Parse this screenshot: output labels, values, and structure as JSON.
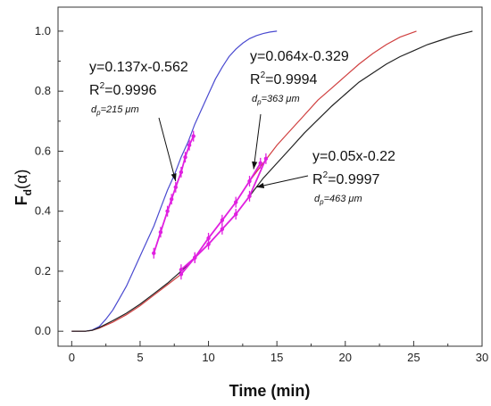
{
  "chart_data": {
    "type": "line",
    "xlabel": "Time (min)",
    "ylabel": {
      "main": "F",
      "sub": "d",
      "paren": "(α)"
    },
    "xlim": [
      -1,
      30
    ],
    "ylim": [
      -0.05,
      1.08
    ],
    "x_ticks": [
      0,
      5,
      10,
      15,
      20,
      25,
      30
    ],
    "y_ticks": [
      0.0,
      0.2,
      0.4,
      0.6,
      0.8,
      1.0
    ],
    "x_tick_labels": [
      "0",
      "5",
      "10",
      "15",
      "20",
      "25",
      "30"
    ],
    "y_tick_labels": [
      "0.0",
      "0.2",
      "0.4",
      "0.6",
      "0.8",
      "1.0"
    ],
    "grid": false,
    "series": [
      {
        "color": "#4a4ad0",
        "x": [
          0,
          1,
          1.5,
          2,
          2.5,
          3,
          3.5,
          4,
          4.5,
          5,
          5.5,
          6,
          6.5,
          7,
          7.5,
          8,
          8.5,
          9,
          9.5,
          10,
          10.5,
          11,
          11.5,
          12,
          12.5,
          13,
          13.5,
          14,
          14.5,
          15
        ],
        "y": [
          0,
          0,
          0.004,
          0.015,
          0.04,
          0.07,
          0.11,
          0.15,
          0.2,
          0.25,
          0.3,
          0.35,
          0.41,
          0.47,
          0.52,
          0.58,
          0.63,
          0.69,
          0.74,
          0.79,
          0.84,
          0.88,
          0.915,
          0.94,
          0.96,
          0.975,
          0.985,
          0.992,
          0.997,
          1.0
        ]
      },
      {
        "color": "#d04040",
        "x": [
          0,
          1,
          1.5,
          2,
          3,
          4,
          5,
          6,
          7,
          8,
          9,
          10,
          11,
          12,
          13,
          14,
          15,
          16,
          17,
          18,
          19,
          20,
          21,
          22,
          23,
          24,
          25.2
        ],
        "y": [
          0,
          0,
          0.003,
          0.01,
          0.03,
          0.055,
          0.085,
          0.12,
          0.155,
          0.19,
          0.245,
          0.31,
          0.37,
          0.43,
          0.5,
          0.56,
          0.62,
          0.67,
          0.72,
          0.77,
          0.81,
          0.85,
          0.89,
          0.925,
          0.955,
          0.98,
          1.0
        ]
      },
      {
        "color": "#222222",
        "x": [
          0,
          1,
          1.5,
          2,
          3,
          4,
          5,
          6,
          7,
          8,
          9,
          10,
          11,
          12,
          13,
          14,
          15,
          16,
          17,
          18,
          19,
          20,
          21,
          22,
          23,
          24,
          25,
          26,
          27,
          28,
          29.3
        ],
        "y": [
          0,
          0,
          0.003,
          0.012,
          0.035,
          0.06,
          0.09,
          0.125,
          0.16,
          0.2,
          0.245,
          0.29,
          0.34,
          0.39,
          0.45,
          0.51,
          0.56,
          0.61,
          0.66,
          0.705,
          0.75,
          0.79,
          0.83,
          0.86,
          0.89,
          0.915,
          0.935,
          0.955,
          0.97,
          0.985,
          1.0
        ]
      }
    ],
    "markers": [
      {
        "x": [
          6.0,
          6.5,
          7.0,
          7.3,
          7.6,
          8.0,
          8.3,
          8.6,
          8.9
        ],
        "y": [
          0.26,
          0.33,
          0.4,
          0.44,
          0.48,
          0.53,
          0.58,
          0.62,
          0.65
        ]
      },
      {
        "x": [
          8.0,
          9.0,
          10.0,
          11.0,
          12.0,
          13.0,
          13.8
        ],
        "y": [
          0.19,
          0.245,
          0.31,
          0.37,
          0.43,
          0.5,
          0.56
        ]
      },
      {
        "x": [
          8.0,
          9.0,
          10.0,
          11.0,
          12.0,
          13.0,
          14.2
        ],
        "y": [
          0.205,
          0.245,
          0.29,
          0.34,
          0.39,
          0.45,
          0.575
        ]
      }
    ],
    "annotations": [
      {
        "eq": "y=0.137x-0.562",
        "r2": "0.9996",
        "dp": "215",
        "arrow_to": [
          7.6,
          0.5
        ]
      },
      {
        "eq": "y=0.064x-0.329",
        "r2": "0.9994",
        "dp": "363",
        "arrow_to": [
          13.3,
          0.54
        ]
      },
      {
        "eq": "y=0.05x-0.22",
        "r2": "0.9997",
        "dp": "463",
        "arrow_to": [
          13.5,
          0.48
        ]
      }
    ],
    "ann_text": {
      "r2_prefix": "R",
      "r2_sup": "2",
      "dp_prefix": "d",
      "dp_sub": "p",
      "dp_unit": "μm"
    },
    "marker_color": "#e020e0"
  }
}
